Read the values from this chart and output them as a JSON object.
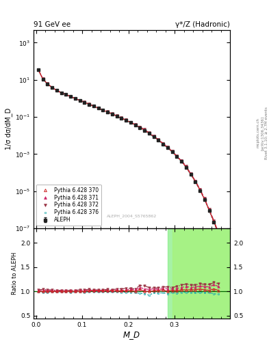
{
  "title_left": "91 GeV ee",
  "title_right": "γ*/Z (Hadronic)",
  "ylabel_main": "1/σ dσ/dM_D",
  "ylabel_ratio": "Ratio to ALEPH",
  "xlabel": "M_D",
  "watermark": "ALEPH_2004_S5765862",
  "side_text1": "Rivet 3.1.10; ≥ 2.7M events",
  "side_text2": "[arXiv:1306.3436]",
  "side_text3": "mcplots.cern.ch",
  "ylim_main": [
    1e-07,
    5000
  ],
  "ylim_ratio": [
    0.44,
    2.3
  ],
  "xlim": [
    -0.005,
    0.42
  ],
  "xticks": [
    0.0,
    0.1,
    0.2,
    0.3
  ],
  "yticks_ratio": [
    0.5,
    1.0,
    1.5,
    2.0
  ],
  "data_x": [
    0.005,
    0.015,
    0.025,
    0.035,
    0.045,
    0.055,
    0.065,
    0.075,
    0.085,
    0.095,
    0.105,
    0.115,
    0.125,
    0.135,
    0.145,
    0.155,
    0.165,
    0.175,
    0.185,
    0.195,
    0.205,
    0.215,
    0.225,
    0.235,
    0.245,
    0.255,
    0.265,
    0.275,
    0.285,
    0.295,
    0.305,
    0.315,
    0.325,
    0.335,
    0.345,
    0.355,
    0.365,
    0.375,
    0.385,
    0.395
  ],
  "data_aleph": [
    35.0,
    11.0,
    6.0,
    3.8,
    2.7,
    2.0,
    1.6,
    1.25,
    0.98,
    0.78,
    0.61,
    0.48,
    0.375,
    0.295,
    0.232,
    0.183,
    0.143,
    0.11,
    0.085,
    0.065,
    0.049,
    0.037,
    0.026,
    0.019,
    0.013,
    0.0086,
    0.0056,
    0.0035,
    0.0022,
    0.0013,
    0.00072,
    0.0004,
    0.00019,
    8e-05,
    3.2e-05,
    1.1e-05,
    3.5e-06,
    9e-07,
    2.2e-07,
    5e-08
  ],
  "data_p370": [
    35.0,
    11.0,
    6.0,
    3.8,
    2.7,
    2.0,
    1.6,
    1.25,
    0.98,
    0.78,
    0.61,
    0.485,
    0.378,
    0.297,
    0.234,
    0.185,
    0.144,
    0.111,
    0.086,
    0.066,
    0.05,
    0.037,
    0.027,
    0.019,
    0.013,
    0.0087,
    0.0057,
    0.0036,
    0.0022,
    0.00132,
    0.00073,
    0.00041,
    0.000195,
    8.2e-05,
    3.3e-05,
    1.15e-05,
    3.6e-06,
    9.2e-07,
    2.3e-07,
    5.1e-08
  ],
  "data_p371": [
    35.5,
    11.2,
    6.1,
    3.85,
    2.72,
    2.02,
    1.61,
    1.26,
    0.99,
    0.79,
    0.62,
    0.49,
    0.382,
    0.3,
    0.237,
    0.187,
    0.146,
    0.113,
    0.087,
    0.067,
    0.051,
    0.038,
    0.028,
    0.02,
    0.0135,
    0.009,
    0.0058,
    0.0037,
    0.0023,
    0.00136,
    0.00076,
    0.00043,
    0.000208,
    8.6e-05,
    3.5e-05,
    1.22e-05,
    3.85e-06,
    9.8e-07,
    2.5e-07,
    5.5e-08
  ],
  "data_p372": [
    36.0,
    11.4,
    6.2,
    3.9,
    2.75,
    2.04,
    1.63,
    1.28,
    1.0,
    0.8,
    0.63,
    0.498,
    0.388,
    0.305,
    0.24,
    0.19,
    0.148,
    0.115,
    0.089,
    0.069,
    0.052,
    0.039,
    0.029,
    0.021,
    0.014,
    0.0092,
    0.006,
    0.0038,
    0.0024,
    0.0014,
    0.00079,
    0.00045,
    0.000218,
    9e-05,
    3.6e-05,
    1.28e-05,
    4e-06,
    1.03e-06,
    2.6e-07,
    5.8e-08
  ],
  "data_p376": [
    34.5,
    10.8,
    5.9,
    3.75,
    2.67,
    1.98,
    1.58,
    1.23,
    0.97,
    0.77,
    0.6,
    0.476,
    0.37,
    0.292,
    0.229,
    0.181,
    0.141,
    0.109,
    0.083,
    0.064,
    0.048,
    0.036,
    0.025,
    0.018,
    0.012,
    0.0083,
    0.0054,
    0.0034,
    0.0021,
    0.00127,
    0.00069,
    0.00039,
    0.000186,
    7.8e-05,
    3.1e-05,
    1.08e-05,
    3.4e-06,
    8.7e-07,
    2.1e-07,
    4.7e-08
  ],
  "ratio_p370": [
    1.0,
    1.0,
    1.0,
    1.0,
    1.0,
    1.0,
    1.0,
    1.0,
    1.0,
    1.0,
    1.0,
    1.01,
    1.01,
    1.01,
    1.01,
    1.01,
    1.01,
    1.01,
    1.01,
    1.01,
    1.02,
    1.0,
    1.04,
    1.0,
    1.0,
    1.01,
    1.02,
    1.03,
    1.0,
    1.02,
    1.01,
    1.03,
    1.03,
    1.03,
    1.03,
    1.05,
    1.03,
    1.02,
    1.05,
    1.02
  ],
  "ratio_p371": [
    1.01,
    1.02,
    1.02,
    1.01,
    1.01,
    1.01,
    1.01,
    1.01,
    1.01,
    1.01,
    1.02,
    1.02,
    1.02,
    1.02,
    1.02,
    1.02,
    1.02,
    1.03,
    1.02,
    1.03,
    1.04,
    1.03,
    1.08,
    1.05,
    1.04,
    1.05,
    1.04,
    1.06,
    1.05,
    1.05,
    1.06,
    1.08,
    1.1,
    1.08,
    1.09,
    1.11,
    1.1,
    1.09,
    1.14,
    1.1
  ],
  "ratio_p372": [
    1.03,
    1.04,
    1.03,
    1.03,
    1.02,
    1.02,
    1.02,
    1.02,
    1.02,
    1.03,
    1.03,
    1.04,
    1.03,
    1.03,
    1.03,
    1.04,
    1.03,
    1.05,
    1.05,
    1.06,
    1.06,
    1.05,
    1.12,
    1.11,
    1.08,
    1.07,
    1.07,
    1.09,
    1.09,
    1.08,
    1.1,
    1.13,
    1.15,
    1.13,
    1.13,
    1.16,
    1.14,
    1.14,
    1.18,
    1.16
  ],
  "ratio_p376": [
    0.99,
    0.98,
    0.98,
    0.99,
    0.99,
    0.99,
    0.99,
    0.98,
    0.99,
    0.99,
    0.98,
    0.99,
    0.99,
    0.99,
    0.99,
    0.99,
    0.99,
    0.99,
    0.98,
    0.98,
    0.98,
    0.97,
    0.96,
    0.95,
    0.92,
    0.97,
    0.96,
    0.97,
    0.95,
    0.98,
    0.96,
    0.98,
    0.98,
    0.98,
    0.97,
    0.98,
    0.97,
    0.97,
    0.95,
    0.94
  ],
  "color_aleph": "#222222",
  "color_p370": "#cc2222",
  "color_p371": "#cc2266",
  "color_p372": "#993344",
  "color_p376": "#22aaaa",
  "band_green_xstart": 0.285,
  "band_yellow_xstart": 0.295,
  "band_xend": 0.42
}
